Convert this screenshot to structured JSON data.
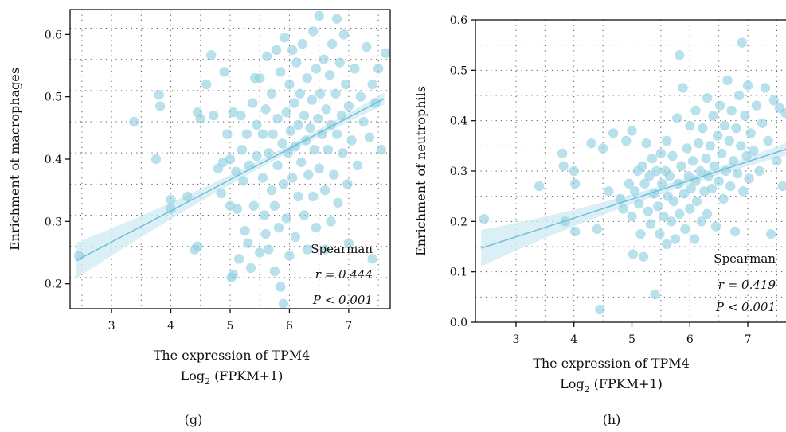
{
  "chart_data": [
    {
      "type": "scatter",
      "panel_label": "(g)",
      "xlabel_line1": "The expression of TPM4",
      "xlabel_line2_base": "Log",
      "xlabel_line2_sub": "2",
      "xlabel_line2_rest": " (FPKM+1)",
      "ylabel": "Enrichment of macrophages",
      "xlim": [
        2.3,
        7.7
      ],
      "ylim": [
        0.16,
        0.64
      ],
      "xticks": [
        3,
        4,
        5,
        6,
        7
      ],
      "yticks": [
        0.2,
        0.3,
        0.4,
        0.5,
        0.6
      ],
      "ytick_labels": [
        "0.2",
        "0.3",
        "0.4",
        "0.5",
        "0.6"
      ],
      "grid": "dotted",
      "colors": {
        "points": "#8ccfe0",
        "line": "#6cbcd4",
        "band": "#cfeaf3"
      },
      "annotation": {
        "method": "Spearman",
        "r": "r = 0.444",
        "p": "P < 0.001"
      },
      "fit": {
        "x": [
          2.4,
          7.6
        ],
        "y": [
          0.237,
          0.497
        ]
      },
      "points": [
        [
          2.45,
          0.245
        ],
        [
          3.38,
          0.46
        ],
        [
          3.75,
          0.4
        ],
        [
          3.8,
          0.503
        ],
        [
          3.82,
          0.485
        ],
        [
          4.0,
          0.335
        ],
        [
          4.0,
          0.32
        ],
        [
          4.28,
          0.34
        ],
        [
          4.4,
          0.255
        ],
        [
          4.45,
          0.26
        ],
        [
          4.45,
          0.475
        ],
        [
          4.5,
          0.465
        ],
        [
          4.6,
          0.52
        ],
        [
          4.68,
          0.567
        ],
        [
          4.72,
          0.47
        ],
        [
          4.8,
          0.385
        ],
        [
          4.85,
          0.345
        ],
        [
          4.88,
          0.395
        ],
        [
          4.9,
          0.54
        ],
        [
          4.95,
          0.44
        ],
        [
          5.0,
          0.4
        ],
        [
          5.0,
          0.325
        ],
        [
          5.02,
          0.21
        ],
        [
          5.05,
          0.215
        ],
        [
          5.05,
          0.475
        ],
        [
          5.1,
          0.38
        ],
        [
          5.12,
          0.32
        ],
        [
          5.15,
          0.24
        ],
        [
          5.18,
          0.47
        ],
        [
          5.2,
          0.415
        ],
        [
          5.22,
          0.365
        ],
        [
          5.25,
          0.285
        ],
        [
          5.28,
          0.44
        ],
        [
          5.3,
          0.265
        ],
        [
          5.32,
          0.39
        ],
        [
          5.35,
          0.225
        ],
        [
          5.38,
          0.49
        ],
        [
          5.4,
          0.325
        ],
        [
          5.42,
          0.53
        ],
        [
          5.45,
          0.455
        ],
        [
          5.45,
          0.405
        ],
        [
          5.5,
          0.25
        ],
        [
          5.5,
          0.53
        ],
        [
          5.55,
          0.44
        ],
        [
          5.55,
          0.37
        ],
        [
          5.58,
          0.31
        ],
        [
          5.6,
          0.48
        ],
        [
          5.6,
          0.28
        ],
        [
          5.62,
          0.565
        ],
        [
          5.65,
          0.41
        ],
        [
          5.65,
          0.255
        ],
        [
          5.7,
          0.505
        ],
        [
          5.7,
          0.35
        ],
        [
          5.72,
          0.44
        ],
        [
          5.75,
          0.325
        ],
        [
          5.75,
          0.22
        ],
        [
          5.78,
          0.575
        ],
        [
          5.8,
          0.465
        ],
        [
          5.8,
          0.39
        ],
        [
          5.82,
          0.29
        ],
        [
          5.85,
          0.54
        ],
        [
          5.85,
          0.195
        ],
        [
          5.88,
          0.425
        ],
        [
          5.9,
          0.36
        ],
        [
          5.9,
          0.168
        ],
        [
          5.92,
          0.595
        ],
        [
          5.95,
          0.475
        ],
        [
          5.95,
          0.305
        ],
        [
          5.98,
          0.41
        ],
        [
          6.0,
          0.52
        ],
        [
          6.0,
          0.245
        ],
        [
          6.02,
          0.445
        ],
        [
          6.05,
          0.575
        ],
        [
          6.05,
          0.37
        ],
        [
          6.08,
          0.49
        ],
        [
          6.1,
          0.42
        ],
        [
          6.1,
          0.275
        ],
        [
          6.12,
          0.555
        ],
        [
          6.15,
          0.455
        ],
        [
          6.15,
          0.34
        ],
        [
          6.18,
          0.505
        ],
        [
          6.2,
          0.395
        ],
        [
          6.22,
          0.585
        ],
        [
          6.25,
          0.47
        ],
        [
          6.25,
          0.31
        ],
        [
          6.28,
          0.43
        ],
        [
          6.3,
          0.53
        ],
        [
          6.3,
          0.255
        ],
        [
          6.32,
          0.375
        ],
        [
          6.35,
          0.45
        ],
        [
          6.38,
          0.495
        ],
        [
          6.4,
          0.605
        ],
        [
          6.4,
          0.34
        ],
        [
          6.42,
          0.415
        ],
        [
          6.45,
          0.545
        ],
        [
          6.45,
          0.29
        ],
        [
          6.48,
          0.465
        ],
        [
          6.5,
          0.63
        ],
        [
          6.5,
          0.385
        ],
        [
          6.52,
          0.505
        ],
        [
          6.55,
          0.44
        ],
        [
          6.58,
          0.56
        ],
        [
          6.6,
          0.35
        ],
        [
          6.6,
          0.255
        ],
        [
          6.62,
          0.48
        ],
        [
          6.65,
          0.415
        ],
        [
          6.68,
          0.535
        ],
        [
          6.7,
          0.455
        ],
        [
          6.7,
          0.3
        ],
        [
          6.72,
          0.585
        ],
        [
          6.75,
          0.375
        ],
        [
          6.78,
          0.505
        ],
        [
          6.8,
          0.625
        ],
        [
          6.8,
          0.44
        ],
        [
          6.82,
          0.33
        ],
        [
          6.85,
          0.555
        ],
        [
          6.88,
          0.47
        ],
        [
          6.9,
          0.41
        ],
        [
          6.92,
          0.6
        ],
        [
          6.95,
          0.52
        ],
        [
          6.98,
          0.36
        ],
        [
          7.0,
          0.485
        ],
        [
          7.0,
          0.265
        ],
        [
          7.05,
          0.43
        ],
        [
          7.1,
          0.545
        ],
        [
          7.15,
          0.39
        ],
        [
          7.2,
          0.5
        ],
        [
          7.25,
          0.46
        ],
        [
          7.3,
          0.58
        ],
        [
          7.35,
          0.435
        ],
        [
          7.4,
          0.52
        ],
        [
          7.45,
          0.49
        ],
        [
          7.5,
          0.545
        ],
        [
          7.55,
          0.415
        ],
        [
          7.62,
          0.57
        ],
        [
          7.4,
          0.24
        ]
      ]
    },
    {
      "type": "scatter",
      "panel_label": "(h)",
      "xlabel_line1": "The expression of TPM4",
      "xlabel_line2_base": "Log",
      "xlabel_line2_sub": "2",
      "xlabel_line2_rest": " (FPKM+1)",
      "ylabel": "Enrichment of neutrophils",
      "xlim": [
        2.3,
        7.7
      ],
      "ylim": [
        0.0,
        0.6
      ],
      "xticks": [
        3,
        4,
        5,
        6,
        7
      ],
      "yticks": [
        0.0,
        0.1,
        0.2,
        0.3,
        0.4,
        0.5,
        0.6
      ],
      "ytick_labels": [
        "0.0",
        "0.1",
        "0.2",
        "0.3",
        "0.4",
        "0.5",
        "0.6"
      ],
      "grid": "dotted",
      "colors": {
        "points": "#8ccfe0",
        "line": "#6cbcd4",
        "band": "#cfeaf3"
      },
      "annotation": {
        "method": "Spearman",
        "r": "r = 0.419",
        "p": "P < 0.001"
      },
      "fit": {
        "x": [
          2.4,
          7.7
        ],
        "y": [
          0.147,
          0.345
        ]
      },
      "points": [
        [
          2.45,
          0.205
        ],
        [
          3.4,
          0.27
        ],
        [
          3.8,
          0.335
        ],
        [
          3.82,
          0.31
        ],
        [
          3.85,
          0.2
        ],
        [
          4.0,
          0.3
        ],
        [
          4.02,
          0.275
        ],
        [
          4.02,
          0.18
        ],
        [
          4.3,
          0.355
        ],
        [
          4.4,
          0.185
        ],
        [
          4.45,
          0.025
        ],
        [
          4.5,
          0.345
        ],
        [
          4.6,
          0.26
        ],
        [
          4.68,
          0.375
        ],
        [
          4.8,
          0.245
        ],
        [
          4.85,
          0.225
        ],
        [
          4.9,
          0.36
        ],
        [
          4.95,
          0.275
        ],
        [
          5.0,
          0.38
        ],
        [
          5.0,
          0.21
        ],
        [
          5.02,
          0.135
        ],
        [
          5.05,
          0.26
        ],
        [
          5.1,
          0.3
        ],
        [
          5.12,
          0.235
        ],
        [
          5.15,
          0.175
        ],
        [
          5.18,
          0.31
        ],
        [
          5.2,
          0.13
        ],
        [
          5.22,
          0.275
        ],
        [
          5.25,
          0.355
        ],
        [
          5.28,
          0.22
        ],
        [
          5.3,
          0.29
        ],
        [
          5.32,
          0.195
        ],
        [
          5.35,
          0.325
        ],
        [
          5.38,
          0.255
        ],
        [
          5.4,
          0.055
        ],
        [
          5.42,
          0.3
        ],
        [
          5.45,
          0.23
        ],
        [
          5.48,
          0.175
        ],
        [
          5.5,
          0.335
        ],
        [
          5.52,
          0.275
        ],
        [
          5.55,
          0.21
        ],
        [
          5.58,
          0.3
        ],
        [
          5.6,
          0.36
        ],
        [
          5.6,
          0.155
        ],
        [
          5.62,
          0.25
        ],
        [
          5.65,
          0.29
        ],
        [
          5.68,
          0.2
        ],
        [
          5.7,
          0.33
        ],
        [
          5.72,
          0.24
        ],
        [
          5.75,
          0.165
        ],
        [
          5.78,
          0.405
        ],
        [
          5.8,
          0.275
        ],
        [
          5.82,
          0.53
        ],
        [
          5.82,
          0.215
        ],
        [
          5.85,
          0.31
        ],
        [
          5.88,
          0.465
        ],
        [
          5.9,
          0.255
        ],
        [
          5.92,
          0.185
        ],
        [
          5.95,
          0.345
        ],
        [
          5.98,
          0.29
        ],
        [
          6.0,
          0.39
        ],
        [
          6.0,
          0.225
        ],
        [
          6.02,
          0.265
        ],
        [
          6.05,
          0.32
        ],
        [
          6.08,
          0.165
        ],
        [
          6.1,
          0.42
        ],
        [
          6.1,
          0.28
        ],
        [
          6.12,
          0.24
        ],
        [
          6.15,
          0.355
        ],
        [
          6.18,
          0.3
        ],
        [
          6.2,
          0.2
        ],
        [
          6.22,
          0.385
        ],
        [
          6.25,
          0.26
        ],
        [
          6.28,
          0.325
        ],
        [
          6.3,
          0.445
        ],
        [
          6.3,
          0.215
        ],
        [
          6.32,
          0.29
        ],
        [
          6.35,
          0.35
        ],
        [
          6.38,
          0.265
        ],
        [
          6.4,
          0.41
        ],
        [
          6.42,
          0.31
        ],
        [
          6.45,
          0.19
        ],
        [
          6.48,
          0.37
        ],
        [
          6.5,
          0.28
        ],
        [
          6.52,
          0.43
        ],
        [
          6.55,
          0.335
        ],
        [
          6.58,
          0.245
        ],
        [
          6.6,
          0.39
        ],
        [
          6.62,
          0.3
        ],
        [
          6.65,
          0.48
        ],
        [
          6.68,
          0.36
        ],
        [
          6.7,
          0.27
        ],
        [
          6.72,
          0.42
        ],
        [
          6.75,
          0.32
        ],
        [
          6.78,
          0.18
        ],
        [
          6.8,
          0.385
        ],
        [
          6.82,
          0.295
        ],
        [
          6.85,
          0.45
        ],
        [
          6.88,
          0.35
        ],
        [
          6.9,
          0.555
        ],
        [
          6.92,
          0.26
        ],
        [
          6.95,
          0.41
        ],
        [
          6.98,
          0.33
        ],
        [
          7.0,
          0.47
        ],
        [
          7.02,
          0.285
        ],
        [
          7.05,
          0.375
        ],
        [
          7.1,
          0.34
        ],
        [
          7.15,
          0.43
        ],
        [
          7.2,
          0.3
        ],
        [
          7.25,
          0.395
        ],
        [
          7.3,
          0.465
        ],
        [
          7.35,
          0.36
        ],
        [
          7.4,
          0.175
        ],
        [
          7.45,
          0.44
        ],
        [
          7.5,
          0.32
        ],
        [
          7.55,
          0.425
        ],
        [
          7.6,
          0.27
        ],
        [
          7.65,
          0.415
        ]
      ]
    }
  ]
}
